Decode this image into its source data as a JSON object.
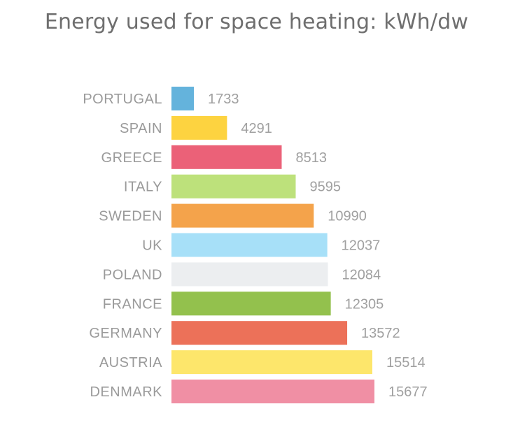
{
  "chart_data": {
    "type": "bar",
    "orientation": "horizontal",
    "title": "Energy used for space heating: kWh/dw",
    "categories": [
      "PORTUGAL",
      "SPAIN",
      "GREECE",
      "ITALY",
      "SWEDEN",
      "UK",
      "POLAND",
      "FRANCE",
      "GERMANY",
      "AUSTRIA",
      "DENMARK"
    ],
    "values": [
      1733,
      4291,
      8513,
      9595,
      10990,
      12037,
      12084,
      12305,
      13572,
      15514,
      15677
    ],
    "value_labels": [
      "1733",
      "4291",
      "8513",
      "9595",
      "10990",
      "12037",
      "12084",
      "12305",
      "13572",
      "15514",
      "15677"
    ],
    "colors": [
      "#64b3dc",
      "#fdd340",
      "#eb6178",
      "#bde17b",
      "#f4a34b",
      "#a7e0f8",
      "#eceef0",
      "#93c14d",
      "#ec7159",
      "#fde66b",
      "#f08fa4"
    ],
    "grid": false,
    "legend": "none"
  }
}
